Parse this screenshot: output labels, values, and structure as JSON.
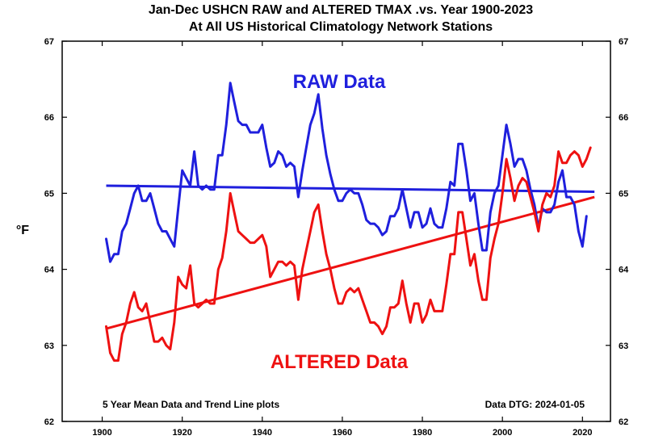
{
  "chart_data": {
    "type": "line",
    "title": "Jan-Dec USHCN RAW and ALTERED TMAX .vs. Year 1900-2023",
    "subtitle": "At All US Historical Climatology Network Stations",
    "ylabel": "°F",
    "xlabel": "",
    "xlim": [
      1890,
      2027
    ],
    "ylim": [
      62,
      67
    ],
    "x_ticks": [
      1900,
      1920,
      1940,
      1960,
      1980,
      2000,
      2020
    ],
    "y_ticks": [
      62,
      63,
      64,
      65,
      66,
      67
    ],
    "grid": false,
    "legend": "none",
    "annotations": {
      "bottom_left": "5 Year Mean Data and Trend Line plots",
      "bottom_right": "Data DTG: 2024-01-05"
    },
    "series": [
      {
        "name": "RAW Data",
        "color": "#1f1fdd",
        "x": [
          1901,
          1902,
          1903,
          1904,
          1905,
          1906,
          1907,
          1908,
          1909,
          1910,
          1911,
          1912,
          1913,
          1914,
          1915,
          1916,
          1917,
          1918,
          1919,
          1920,
          1921,
          1922,
          1923,
          1924,
          1925,
          1926,
          1927,
          1928,
          1929,
          1930,
          1931,
          1932,
          1933,
          1934,
          1935,
          1936,
          1937,
          1938,
          1939,
          1940,
          1941,
          1942,
          1943,
          1944,
          1945,
          1946,
          1947,
          1948,
          1949,
          1950,
          1951,
          1952,
          1953,
          1954,
          1955,
          1956,
          1957,
          1958,
          1959,
          1960,
          1961,
          1962,
          1963,
          1964,
          1965,
          1966,
          1967,
          1968,
          1969,
          1970,
          1971,
          1972,
          1973,
          1974,
          1975,
          1976,
          1977,
          1978,
          1979,
          1980,
          1981,
          1982,
          1983,
          1984,
          1985,
          1986,
          1987,
          1988,
          1989,
          1990,
          1991,
          1992,
          1993,
          1994,
          1995,
          1996,
          1997,
          1998,
          1999,
          2000,
          2001,
          2002,
          2003,
          2004,
          2005,
          2006,
          2007,
          2008,
          2009,
          2010,
          2011,
          2012,
          2013,
          2014,
          2015,
          2016,
          2017,
          2018,
          2019,
          2020,
          2021
        ],
        "values": [
          64.4,
          64.1,
          64.2,
          64.2,
          64.5,
          64.6,
          64.8,
          65.0,
          65.1,
          64.9,
          64.9,
          65.0,
          64.8,
          64.6,
          64.5,
          64.5,
          64.4,
          64.3,
          64.8,
          65.3,
          65.2,
          65.1,
          65.55,
          65.1,
          65.05,
          65.1,
          65.05,
          65.05,
          65.5,
          65.5,
          65.9,
          66.45,
          66.2,
          65.95,
          65.9,
          65.9,
          65.8,
          65.8,
          65.8,
          65.9,
          65.6,
          65.35,
          65.4,
          65.55,
          65.5,
          65.35,
          65.4,
          65.35,
          64.95,
          65.3,
          65.6,
          65.9,
          66.05,
          66.3,
          65.85,
          65.5,
          65.25,
          65.05,
          64.9,
          64.9,
          65.0,
          65.05,
          65.0,
          65.0,
          64.85,
          64.65,
          64.6,
          64.6,
          64.55,
          64.45,
          64.5,
          64.7,
          64.7,
          64.8,
          65.05,
          64.8,
          64.55,
          64.75,
          64.75,
          64.55,
          64.6,
          64.8,
          64.6,
          64.55,
          64.55,
          64.8,
          65.15,
          65.1,
          65.65,
          65.65,
          65.3,
          64.9,
          65.0,
          64.6,
          64.25,
          64.25,
          64.75,
          65.0,
          65.1,
          65.5,
          65.9,
          65.65,
          65.35,
          65.45,
          65.45,
          65.3,
          65.05,
          64.85,
          64.55,
          64.8,
          64.75,
          64.75,
          64.85,
          65.15,
          65.3,
          64.95,
          64.95,
          64.85,
          64.5,
          64.3,
          64.7
        ]
      },
      {
        "name": "ALTERED Data",
        "color": "#ee1111",
        "x": [
          1901,
          1902,
          1903,
          1904,
          1905,
          1906,
          1907,
          1908,
          1909,
          1910,
          1911,
          1912,
          1913,
          1914,
          1915,
          1916,
          1917,
          1918,
          1919,
          1920,
          1921,
          1922,
          1923,
          1924,
          1925,
          1926,
          1927,
          1928,
          1929,
          1930,
          1931,
          1932,
          1933,
          1934,
          1935,
          1936,
          1937,
          1938,
          1939,
          1940,
          1941,
          1942,
          1943,
          1944,
          1945,
          1946,
          1947,
          1948,
          1949,
          1950,
          1951,
          1952,
          1953,
          1954,
          1955,
          1956,
          1957,
          1958,
          1959,
          1960,
          1961,
          1962,
          1963,
          1964,
          1965,
          1966,
          1967,
          1968,
          1969,
          1970,
          1971,
          1972,
          1973,
          1974,
          1975,
          1976,
          1977,
          1978,
          1979,
          1980,
          1981,
          1982,
          1983,
          1984,
          1985,
          1986,
          1987,
          1988,
          1989,
          1990,
          1991,
          1992,
          1993,
          1994,
          1995,
          1996,
          1997,
          1998,
          1999,
          2000,
          2001,
          2002,
          2003,
          2004,
          2005,
          2006,
          2007,
          2008,
          2009,
          2010,
          2011,
          2012,
          2013,
          2014,
          2015,
          2016,
          2017,
          2018,
          2019,
          2020,
          2021,
          2022
        ],
        "values": [
          63.25,
          62.9,
          62.8,
          62.8,
          63.15,
          63.3,
          63.55,
          63.7,
          63.5,
          63.45,
          63.55,
          63.3,
          63.05,
          63.05,
          63.1,
          63.0,
          62.95,
          63.3,
          63.9,
          63.8,
          63.75,
          64.05,
          63.55,
          63.5,
          63.55,
          63.6,
          63.55,
          63.55,
          64.0,
          64.15,
          64.5,
          65.0,
          64.75,
          64.5,
          64.45,
          64.4,
          64.35,
          64.35,
          64.4,
          64.45,
          64.3,
          63.9,
          64.0,
          64.1,
          64.1,
          64.05,
          64.1,
          64.05,
          63.6,
          64.0,
          64.25,
          64.5,
          64.75,
          64.85,
          64.5,
          64.2,
          64.0,
          63.75,
          63.55,
          63.55,
          63.7,
          63.75,
          63.7,
          63.75,
          63.6,
          63.45,
          63.3,
          63.3,
          63.25,
          63.15,
          63.25,
          63.5,
          63.5,
          63.55,
          63.85,
          63.55,
          63.3,
          63.55,
          63.55,
          63.3,
          63.4,
          63.6,
          63.45,
          63.45,
          63.45,
          63.8,
          64.2,
          64.2,
          64.75,
          64.75,
          64.4,
          64.05,
          64.2,
          63.85,
          63.6,
          63.6,
          64.15,
          64.4,
          64.6,
          65.0,
          65.45,
          65.2,
          64.9,
          65.1,
          65.2,
          65.15,
          64.95,
          64.75,
          64.5,
          64.85,
          65.0,
          64.95,
          65.1,
          65.55,
          65.4,
          65.4,
          65.5,
          65.55,
          65.5,
          65.35,
          65.45,
          65.6
        ]
      }
    ],
    "trend_lines": [
      {
        "name": "RAW Data",
        "color": "#1f1fdd",
        "x": [
          1901,
          2023
        ],
        "y": [
          65.1,
          65.02
        ]
      },
      {
        "name": "ALTERED Data",
        "color": "#ee1111",
        "x": [
          1901,
          2023
        ],
        "y": [
          63.22,
          64.95
        ]
      }
    ],
    "series_labels": [
      {
        "text": "RAW Data",
        "color": "#1f1fdd"
      },
      {
        "text": "ALTERED Data",
        "color": "#ee1111"
      }
    ]
  }
}
